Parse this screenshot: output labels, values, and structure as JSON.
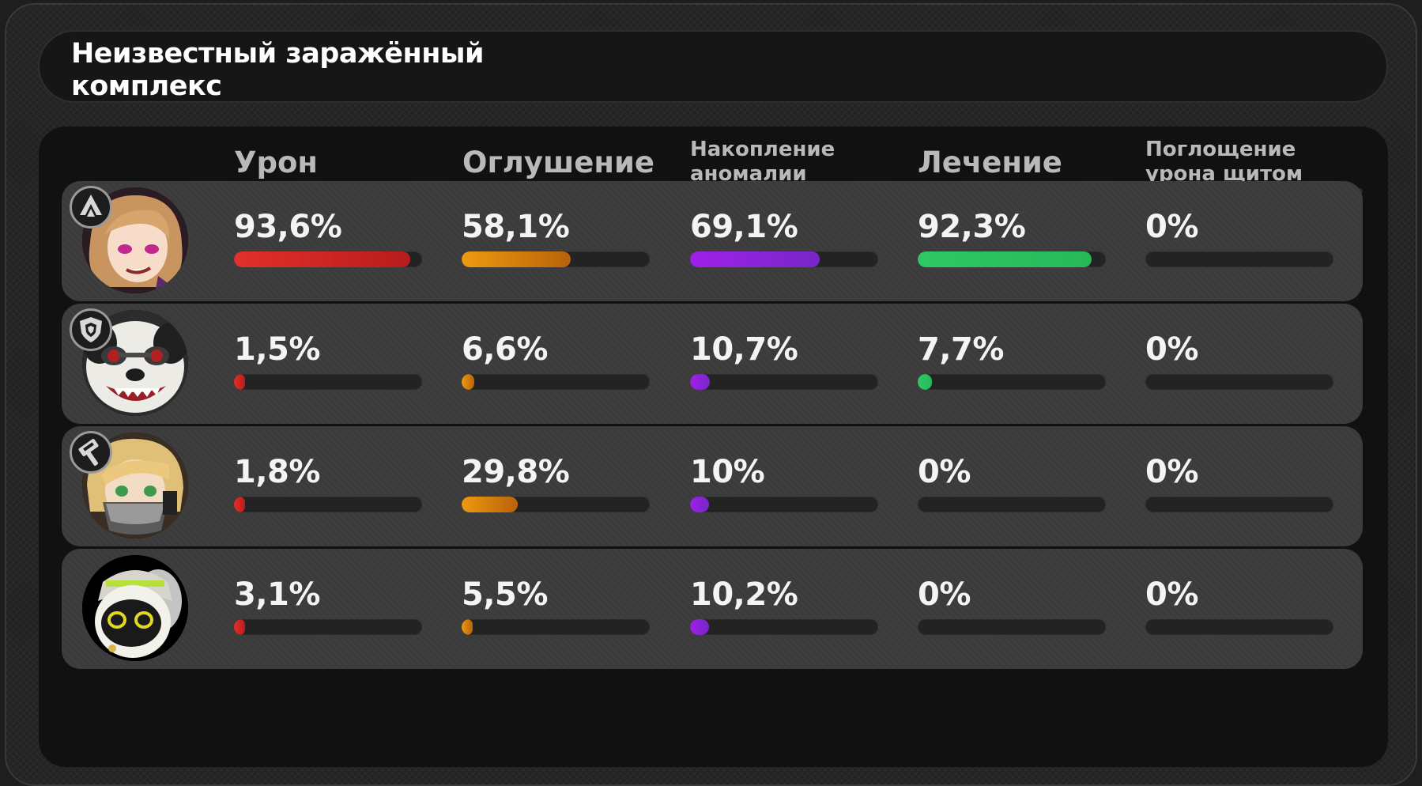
{
  "header": {
    "title_line1": "Неизвестный заражённый",
    "title_line2": "комплекс"
  },
  "columns": [
    {
      "label": "Урон",
      "color": "#e3302a",
      "color2": "#b81c1c"
    },
    {
      "label": "Оглушение",
      "color": "#ee9a10",
      "color2": "#b8620a"
    },
    {
      "label_line1": "Накопление",
      "label_line2": "аномалии",
      "color": "#a020e8",
      "color2": "#7826c8"
    },
    {
      "label": "Лечение",
      "color": "#2fc866",
      "color2": "#28b85a"
    },
    {
      "label_line1": "Поглощение",
      "label_line2": "урона щитом",
      "color": "#e3302a",
      "color2": "#b81c1c"
    }
  ],
  "rows": [
    {
      "avatar": "blonde-agent-portrait",
      "badge_icon": "attack-role-icon",
      "stats": [
        {
          "text": "93,6%",
          "value": 93.6
        },
        {
          "text": "58,1%",
          "value": 58.1
        },
        {
          "text": "69,1%",
          "value": 69.1
        },
        {
          "text": "92,3%",
          "value": 92.3
        },
        {
          "text": "0%",
          "value": 0
        }
      ]
    },
    {
      "avatar": "panda-agent-portrait",
      "badge_icon": "defense-role-icon",
      "stats": [
        {
          "text": "1,5%",
          "value": 1.5
        },
        {
          "text": "6,6%",
          "value": 6.6
        },
        {
          "text": "10,7%",
          "value": 10.7
        },
        {
          "text": "7,7%",
          "value": 7.7
        },
        {
          "text": "0%",
          "value": 0
        }
      ]
    },
    {
      "avatar": "masked-agent-portrait",
      "badge_icon": "stun-role-icon",
      "stats": [
        {
          "text": "1,8%",
          "value": 1.8
        },
        {
          "text": "29,8%",
          "value": 29.8
        },
        {
          "text": "10%",
          "value": 10
        },
        {
          "text": "0%",
          "value": 0
        },
        {
          "text": "0%",
          "value": 0
        }
      ]
    },
    {
      "avatar": "bangboo-portrait",
      "badge_icon": "",
      "stats": [
        {
          "text": "3,1%",
          "value": 3.1
        },
        {
          "text": "5,5%",
          "value": 5.5
        },
        {
          "text": "10,2%",
          "value": 10.2
        },
        {
          "text": "0%",
          "value": 0
        },
        {
          "text": "0%",
          "value": 0
        }
      ]
    }
  ]
}
